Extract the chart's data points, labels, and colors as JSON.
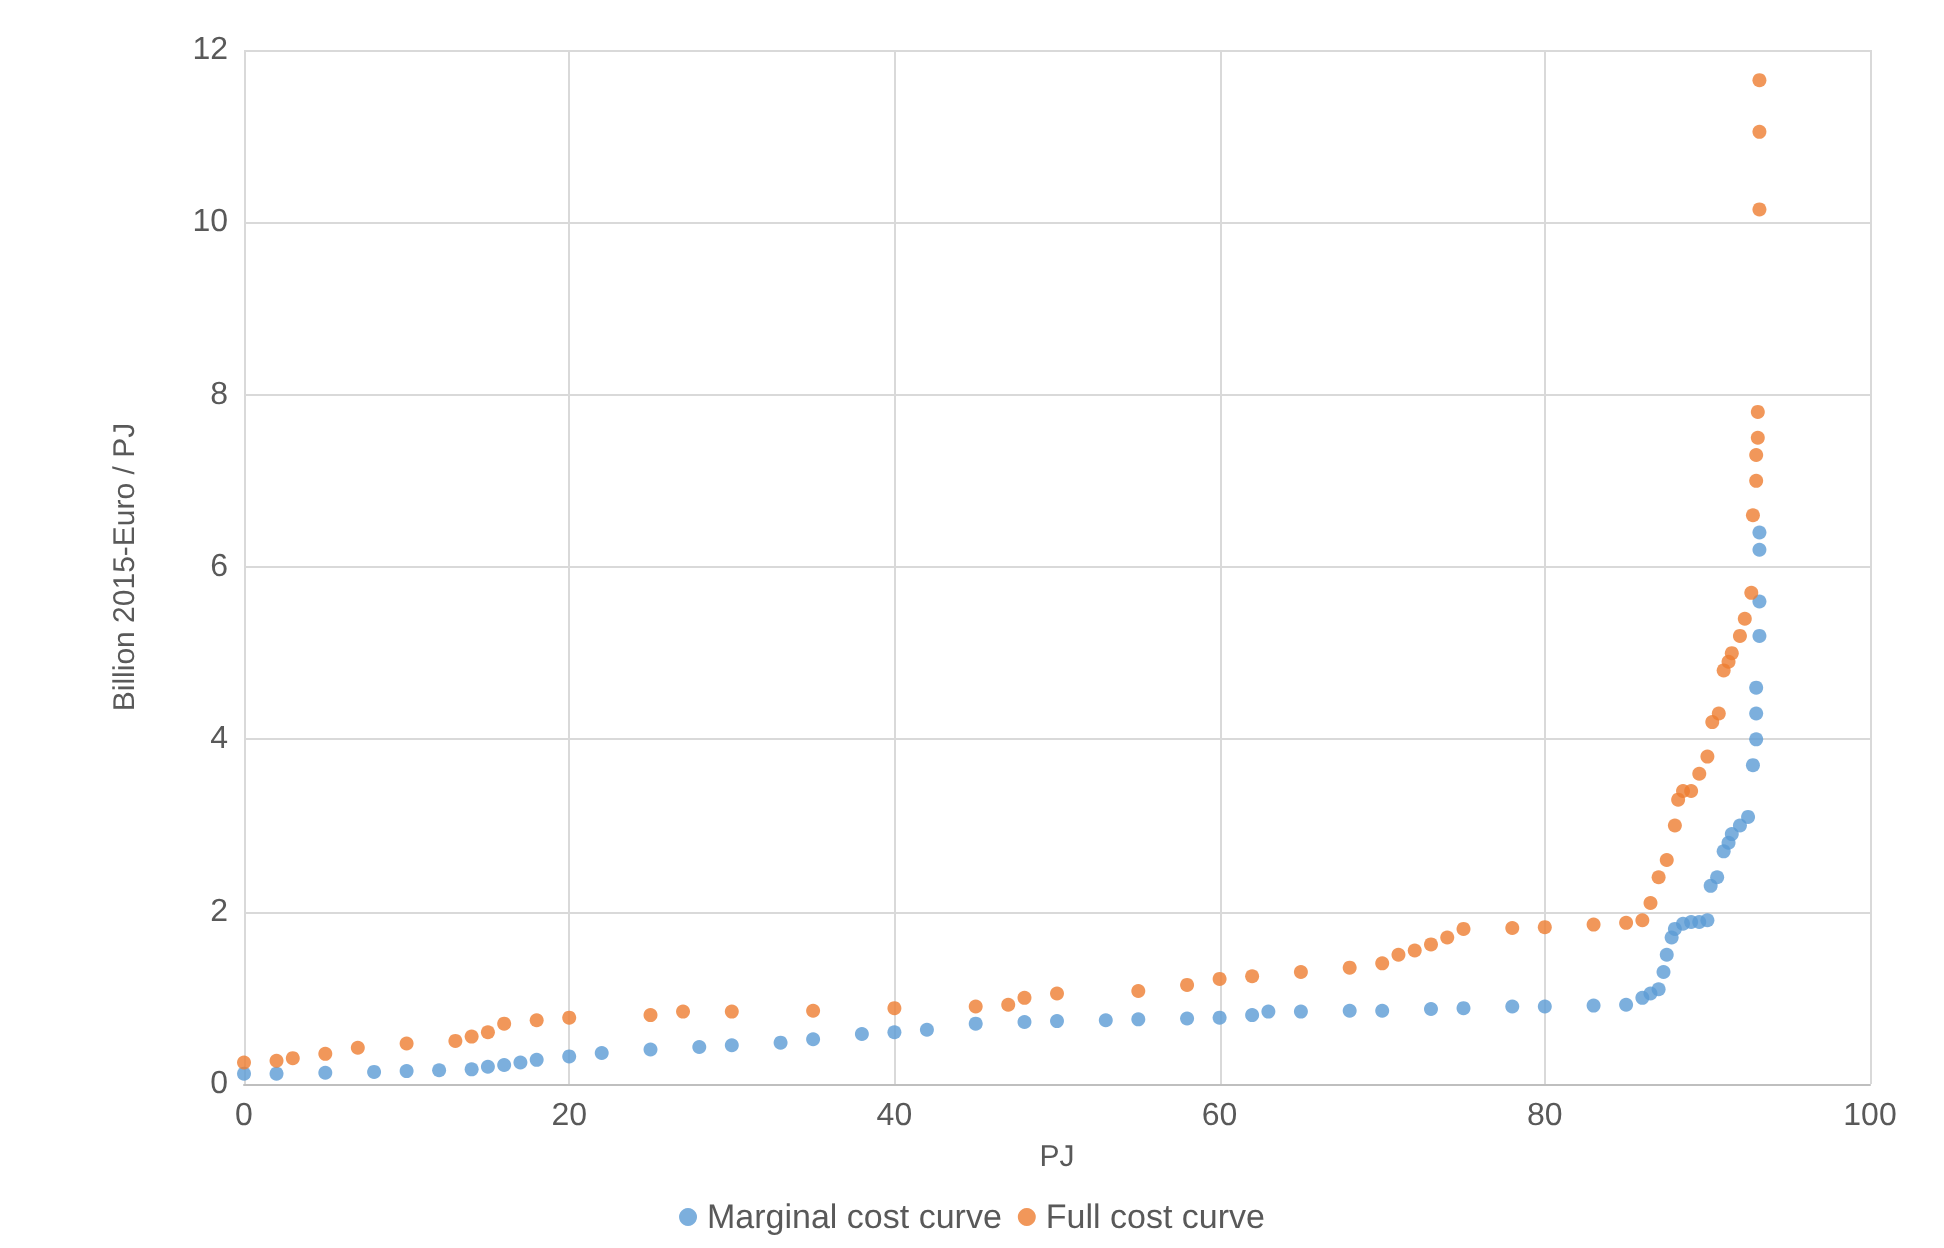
{
  "chart_data": {
    "type": "scatter",
    "xlabel": "PJ",
    "ylabel": "Billion 2015-Euro / PJ",
    "xlim": [
      0,
      100
    ],
    "xticks": [
      0,
      20,
      40,
      60,
      80,
      100
    ],
    "ylim": [
      0,
      12
    ],
    "yticks": [
      0,
      2,
      4,
      6,
      8,
      10,
      12
    ],
    "grid": true,
    "legend": "bottom",
    "marker": "circle",
    "series": [
      {
        "name": "Marginal cost curve",
        "color": "#5b9bd5",
        "x": [
          0,
          2,
          5,
          8,
          10,
          12,
          14,
          15,
          16,
          17,
          18,
          20,
          22,
          25,
          28,
          30,
          33,
          35,
          38,
          40,
          42,
          45,
          48,
          50,
          53,
          55,
          58,
          60,
          62,
          63,
          65,
          68,
          70,
          73,
          75,
          78,
          80,
          83,
          85,
          86,
          86.5,
          87,
          87.3,
          87.5,
          87.8,
          88,
          88.5,
          89,
          89.5,
          90,
          90.2,
          90.6,
          91,
          91.3,
          91.5,
          92,
          92.5,
          92.8,
          93,
          93,
          93,
          93.2,
          93.2,
          93.2,
          93.2
        ],
        "values": [
          0.12,
          0.12,
          0.13,
          0.14,
          0.15,
          0.16,
          0.17,
          0.2,
          0.22,
          0.25,
          0.28,
          0.32,
          0.36,
          0.4,
          0.43,
          0.45,
          0.48,
          0.52,
          0.58,
          0.6,
          0.63,
          0.7,
          0.72,
          0.73,
          0.74,
          0.75,
          0.76,
          0.77,
          0.8,
          0.84,
          0.84,
          0.85,
          0.85,
          0.87,
          0.88,
          0.9,
          0.9,
          0.91,
          0.92,
          1.0,
          1.05,
          1.1,
          1.3,
          1.5,
          1.7,
          1.8,
          1.86,
          1.88,
          1.88,
          1.9,
          2.3,
          2.4,
          2.7,
          2.8,
          2.9,
          3.0,
          3.1,
          3.7,
          4.0,
          4.3,
          4.6,
          5.2,
          5.6,
          6.2,
          6.4
        ]
      },
      {
        "name": "Full cost curve",
        "color": "#ed7d31",
        "x": [
          0,
          2,
          3,
          5,
          7,
          10,
          13,
          14,
          15,
          16,
          18,
          20,
          25,
          27,
          30,
          35,
          40,
          45,
          47,
          48,
          50,
          55,
          58,
          60,
          62,
          65,
          68,
          70,
          71,
          72,
          73,
          74,
          75,
          78,
          80,
          83,
          85,
          86,
          86.5,
          87,
          87.5,
          88,
          88.2,
          88.5,
          89,
          89.5,
          90,
          90.3,
          90.7,
          91,
          91.3,
          91.5,
          92,
          92.3,
          92.7,
          92.8,
          93,
          93,
          93.1,
          93.1,
          93.2,
          93.2,
          93.2
        ],
        "values": [
          0.25,
          0.27,
          0.3,
          0.35,
          0.42,
          0.47,
          0.5,
          0.55,
          0.6,
          0.7,
          0.74,
          0.77,
          0.8,
          0.84,
          0.84,
          0.85,
          0.88,
          0.9,
          0.92,
          1.0,
          1.05,
          1.08,
          1.15,
          1.22,
          1.25,
          1.3,
          1.35,
          1.4,
          1.5,
          1.55,
          1.62,
          1.7,
          1.8,
          1.81,
          1.82,
          1.85,
          1.87,
          1.9,
          2.1,
          2.4,
          2.6,
          3.0,
          3.3,
          3.4,
          3.4,
          3.6,
          3.8,
          4.2,
          4.3,
          4.8,
          4.9,
          5.0,
          5.2,
          5.4,
          5.7,
          6.6,
          7.0,
          7.3,
          7.5,
          7.8,
          10.15,
          11.05,
          11.65
        ]
      }
    ]
  }
}
